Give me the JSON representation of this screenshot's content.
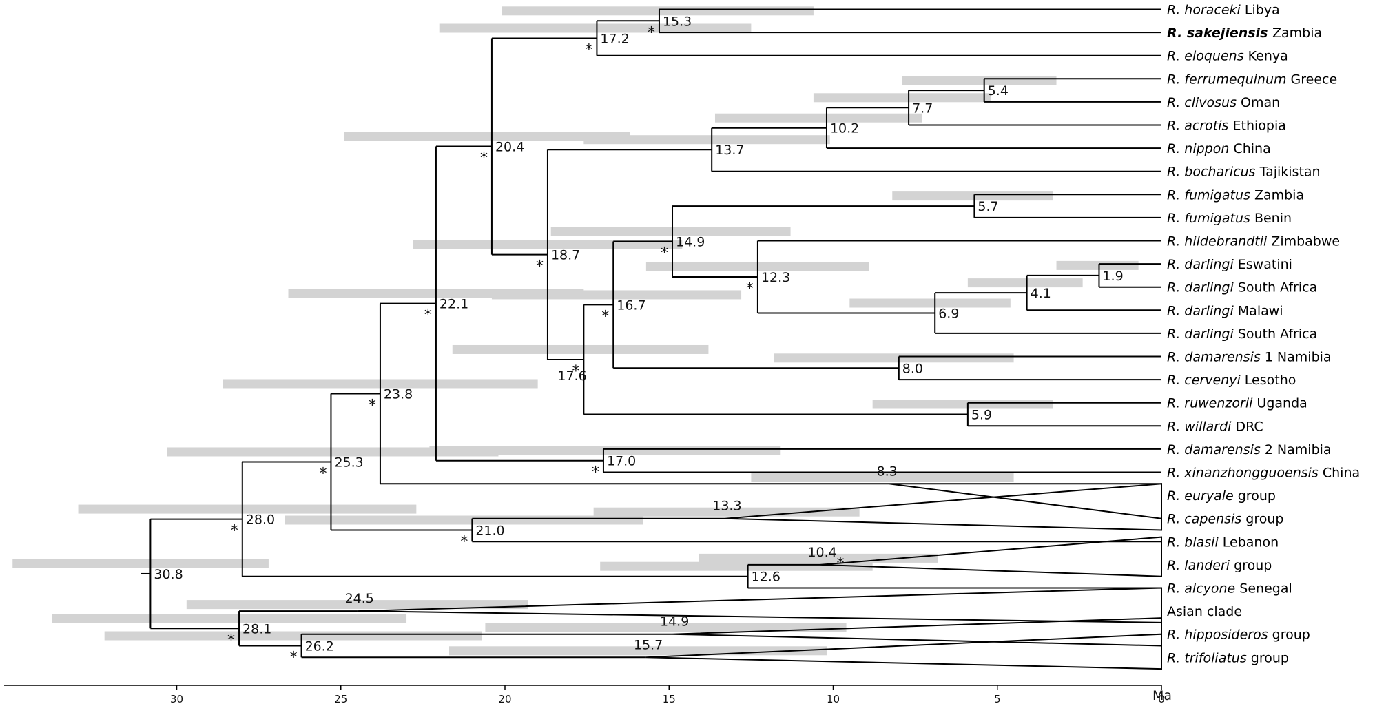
{
  "axis": {
    "ticks": [
      30,
      25,
      20,
      15,
      10,
      5,
      0
    ],
    "tick_labels": [
      "30",
      "25",
      "20",
      "15",
      "10",
      "5",
      "0"
    ],
    "unit": "Ma"
  },
  "tips": [
    {
      "genus": "R.",
      "epithet": "horaceki",
      "rest": "Libya"
    },
    {
      "genus": "R.",
      "epithet": "sakejiensis",
      "rest": "Zambia",
      "bold": true
    },
    {
      "genus": "R.",
      "epithet": "eloquens",
      "rest": "Kenya"
    },
    {
      "genus": "R.",
      "epithet": "ferrumequinum",
      "rest": "Greece"
    },
    {
      "genus": "R.",
      "epithet": "clivosus",
      "rest": "Oman"
    },
    {
      "genus": "R.",
      "epithet": "acrotis",
      "rest": "Ethiopia"
    },
    {
      "genus": "R.",
      "epithet": "nippon",
      "rest": "China"
    },
    {
      "genus": "R.",
      "epithet": "bocharicus",
      "rest": "Tajikistan"
    },
    {
      "genus": "R.",
      "epithet": "fumigatus",
      "rest": "Zambia"
    },
    {
      "genus": "R.",
      "epithet": "fumigatus",
      "rest": "Benin"
    },
    {
      "genus": "R.",
      "epithet": "hildebrandtii",
      "rest": "Zimbabwe"
    },
    {
      "genus": "R.",
      "epithet": "darlingi",
      "rest": "Eswatini"
    },
    {
      "genus": "R.",
      "epithet": "darlingi",
      "rest": "South Africa"
    },
    {
      "genus": "R.",
      "epithet": "darlingi",
      "rest": "Malawi"
    },
    {
      "genus": "R.",
      "epithet": "darlingi",
      "rest": "South Africa"
    },
    {
      "genus": "R.",
      "epithet": "damarensis",
      "rest": "1 Namibia"
    },
    {
      "genus": "R.",
      "epithet": "cervenyi",
      "rest": "Lesotho"
    },
    {
      "genus": "R.",
      "epithet": "ruwenzorii",
      "rest": "Uganda"
    },
    {
      "genus": "R.",
      "epithet": "willardi",
      "rest": "DRC"
    },
    {
      "genus": "R.",
      "epithet": "damarensis",
      "rest": "2 Namibia"
    },
    {
      "genus": "R.",
      "epithet": "xinanzhongguoensis",
      "rest": "China"
    },
    {
      "genus": "R.",
      "epithet": "euryale",
      "rest": "group"
    },
    {
      "genus": "R.",
      "epithet": "capensis",
      "rest": "group"
    },
    {
      "genus": "R.",
      "epithet": "blasii",
      "rest": "Lebanon"
    },
    {
      "genus": "R.",
      "epithet": "landeri",
      "rest": "group"
    },
    {
      "genus": "R.",
      "epithet": "alcyone",
      "rest": "Senegal"
    },
    {
      "genus": "",
      "epithet": "",
      "rest": "Asian clade"
    },
    {
      "genus": "R.",
      "epithet": "hipposideros",
      "rest": "group"
    },
    {
      "genus": "R.",
      "epithet": "trifoliatus",
      "rest": "group"
    }
  ],
  "nodes": [
    {
      "id": "n1",
      "age": 15.3,
      "label": "15.3",
      "star": true,
      "ci": [
        20.1,
        10.6
      ]
    },
    {
      "id": "n2",
      "age": 17.2,
      "label": "17.2",
      "star": true,
      "ci": [
        22.0,
        12.5
      ]
    },
    {
      "id": "n3",
      "age": 5.4,
      "label": "5.4",
      "star": false,
      "ci": [
        7.9,
        3.2
      ]
    },
    {
      "id": "n4",
      "age": 7.7,
      "label": "7.7",
      "star": false,
      "ci": [
        10.6,
        5.2
      ]
    },
    {
      "id": "n5",
      "age": 10.2,
      "label": "10.2",
      "star": false,
      "ci": [
        13.6,
        7.3
      ]
    },
    {
      "id": "n6",
      "age": 13.7,
      "label": "13.7",
      "star": false,
      "ci": [
        17.6,
        10.1
      ]
    },
    {
      "id": "n7",
      "age": 20.4,
      "label": "20.4",
      "star": true,
      "ci": [
        24.9,
        16.2
      ]
    },
    {
      "id": "n8",
      "age": 5.7,
      "label": "5.7",
      "star": false,
      "ci": [
        8.2,
        3.3
      ]
    },
    {
      "id": "n9",
      "age": 1.9,
      "label": "1.9",
      "star": false,
      "ci": [
        3.2,
        0.7
      ]
    },
    {
      "id": "n10",
      "age": 4.1,
      "label": "4.1",
      "star": false,
      "ci": [
        5.9,
        2.4
      ]
    },
    {
      "id": "n11",
      "age": 6.9,
      "label": "6.9",
      "star": false,
      "ci": [
        9.5,
        4.6
      ]
    },
    {
      "id": "n12",
      "age": 12.3,
      "label": "12.3",
      "star": true,
      "ci": [
        15.7,
        8.9
      ]
    },
    {
      "id": "n13",
      "age": 14.9,
      "label": "14.9",
      "star": true,
      "ci": [
        18.6,
        11.3
      ]
    },
    {
      "id": "n14",
      "age": 8.0,
      "label": "8.0",
      "star": false,
      "ci": [
        11.8,
        4.5
      ]
    },
    {
      "id": "n15",
      "age": 16.7,
      "label": "16.7",
      "star": true,
      "ci": [
        20.4,
        12.8
      ]
    },
    {
      "id": "n16",
      "age": 5.9,
      "label": "5.9",
      "star": false,
      "ci": [
        8.8,
        3.3
      ]
    },
    {
      "id": "n17",
      "age": 17.6,
      "label": "17.6",
      "star": true,
      "ci": [
        21.6,
        13.8
      ]
    },
    {
      "id": "n18",
      "age": 18.7,
      "label": "18.7",
      "star": true,
      "ci": [
        22.8,
        14.6
      ]
    },
    {
      "id": "n19",
      "age": 17.0,
      "label": "17.0",
      "star": true,
      "ci": [
        22.3,
        11.6
      ]
    },
    {
      "id": "n20",
      "age": 22.1,
      "label": "22.1",
      "star": true,
      "ci": [
        26.6,
        17.6
      ]
    },
    {
      "id": "n21",
      "age": 23.8,
      "label": "23.8",
      "star": true,
      "ci": [
        28.6,
        19.0
      ]
    },
    {
      "id": "n22",
      "age": 21.0,
      "label": "21.0",
      "star": true,
      "ci": [
        26.7,
        15.8
      ]
    },
    {
      "id": "n23",
      "age": 25.3,
      "label": "25.3",
      "star": true,
      "ci": [
        30.3,
        20.2
      ]
    },
    {
      "id": "n24",
      "age": 12.6,
      "label": "12.6",
      "star": false,
      "ci": [
        17.1,
        8.8
      ]
    },
    {
      "id": "n25",
      "age": 28.0,
      "label": "28.0",
      "star": true,
      "ci": [
        33.0,
        22.7
      ]
    },
    {
      "id": "n26",
      "age": 26.2,
      "label": "26.2",
      "star": true,
      "ci": [
        32.2,
        20.7
      ]
    },
    {
      "id": "n27",
      "age": 28.1,
      "label": "28.1",
      "star": true,
      "ci": [
        33.8,
        23.0
      ]
    },
    {
      "id": "n28",
      "age": 30.8,
      "label": "30.8",
      "star": false,
      "ci": [
        35.0,
        27.2
      ]
    }
  ],
  "collapsed": [
    {
      "id": "c-euryale",
      "label": "8.3",
      "star": false,
      "age": 8.3,
      "ci": [
        12.5,
        4.5
      ]
    },
    {
      "id": "c-capensis",
      "label": "13.3",
      "star": false,
      "age": 13.3,
      "ci": [
        17.3,
        9.2
      ]
    },
    {
      "id": "c-landeri",
      "label": "10.4",
      "star": true,
      "age": 10.4,
      "ci": [
        14.1,
        6.8
      ]
    },
    {
      "id": "c-asian",
      "label": "24.5",
      "star": false,
      "age": 24.5,
      "ci": [
        29.7,
        19.3
      ]
    },
    {
      "id": "c-hipposideros",
      "label": "14.9",
      "star": false,
      "age": 14.9,
      "ci": [
        20.6,
        9.6
      ]
    },
    {
      "id": "c-trifoliatus",
      "label": "15.7",
      "star": false,
      "age": 15.7,
      "ci": [
        21.7,
        10.2
      ]
    }
  ]
}
